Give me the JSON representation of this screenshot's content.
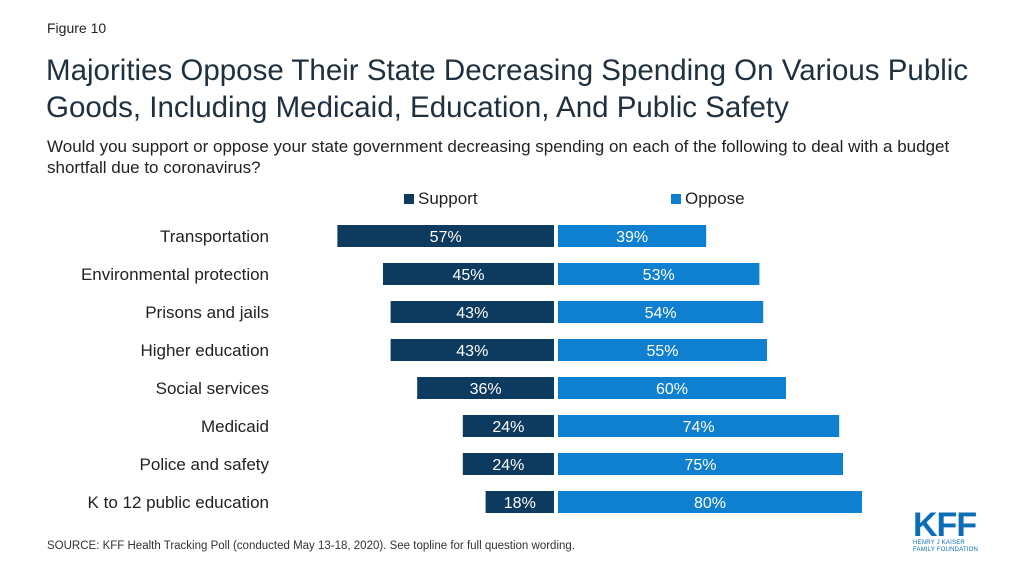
{
  "figure_label": "Figure 10",
  "title": "Majorities Oppose Their State Decreasing Spending On Various Public Goods, Including Medicaid, Education, And Public Safety",
  "subtitle": "Would you support or oppose your state government decreasing spending on each of the following to deal with a budget shortfall due to coronavirus?",
  "source": "SOURCE: KFF Health Tracking Poll (conducted May 13-18, 2020). See topline for full question wording.",
  "logo": {
    "letters": "KFF",
    "line1": "HENRY J KAISER",
    "line2": "FAMILY FOUNDATION",
    "color": "#0b6fb8"
  },
  "colors": {
    "support": "#0d3a5f",
    "oppose": "#0f7fcf"
  },
  "chart_data": {
    "type": "bar",
    "orientation": "horizontal-diverging",
    "categories": [
      "Transportation",
      "Environmental protection",
      "Prisons and jails",
      "Higher education",
      "Social services",
      "Medicaid",
      "Police and safety",
      "K to 12 public education"
    ],
    "series": [
      {
        "name": "Support",
        "values": [
          57,
          45,
          43,
          43,
          36,
          24,
          24,
          18
        ],
        "labels": [
          "57%",
          "45%",
          "43%",
          "43%",
          "36%",
          "24%",
          "24%",
          "18%"
        ]
      },
      {
        "name": "Oppose",
        "values": [
          39,
          53,
          54,
          55,
          60,
          74,
          75,
          80
        ],
        "labels": [
          "39%",
          "53%",
          "54%",
          "55%",
          "60%",
          "74%",
          "75%",
          "80%"
        ]
      }
    ],
    "legend_position": "top",
    "grid": false
  }
}
